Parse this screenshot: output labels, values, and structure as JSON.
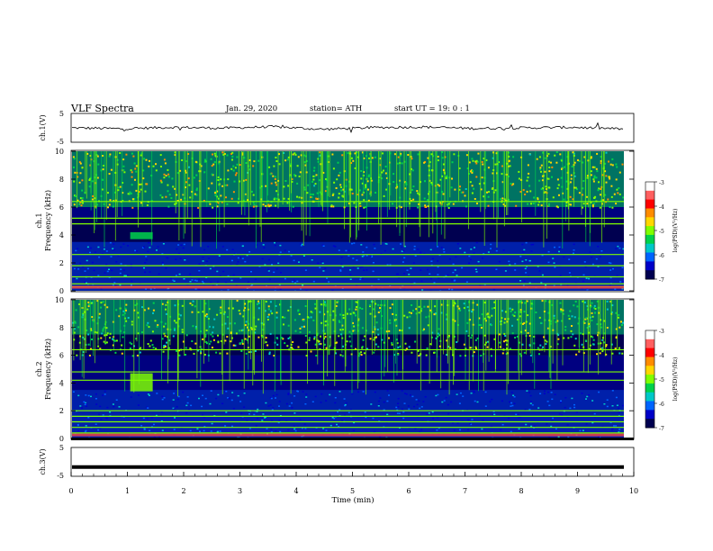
{
  "header": {
    "title": "VLF  Spectra",
    "date": "Jan. 29, 2020",
    "station": "station= ATH",
    "start": "start  UT  =    19: 0   : 1"
  },
  "colorbar": {
    "label": "log(PSD)(V²/Hz)",
    "ticks": [
      "-3",
      "-4",
      "-5",
      "-6",
      "-7"
    ],
    "colors": [
      "#ffffff",
      "#ff6060",
      "#ff0000",
      "#ff8c00",
      "#ffd700",
      "#7fff00",
      "#00d24b",
      "#00c8c8",
      "#0064ff",
      "#0000c8",
      "#000050"
    ]
  },
  "chart_data": [
    {
      "type": "line",
      "panel": "ch1-time-series",
      "ylabel": "ch.1(V)",
      "ylim": [
        -5,
        5
      ],
      "y_ticks": [
        "5",
        "-5"
      ],
      "series": [
        {
          "values_approx": [
            0.0,
            -0.3,
            0.2,
            -0.1,
            0.4,
            -0.5,
            0.1,
            0.3,
            -0.2,
            0.0,
            0.2,
            -0.4
          ]
        }
      ],
      "color": "#000000"
    },
    {
      "type": "heatmap",
      "panel": "ch1-spectrogram",
      "ylabel": "ch.1\nFrequency (kHz)",
      "xlim": [
        0,
        10
      ],
      "ylim": [
        0,
        10
      ],
      "y_ticks": [
        "10",
        "8",
        "6",
        "4",
        "2",
        "0"
      ],
      "value_range_log_psd": [
        -7,
        -3
      ],
      "features": {
        "sferic_band_khz": [
          6,
          10
        ],
        "sferic_level": -5.2,
        "quiet_band_khz": [
          3.5,
          5.2
        ],
        "quiet_level": -6.9,
        "narrowband_lines_khz": [
          6.4,
          5.2,
          4.8,
          2.6,
          1.8,
          1.0,
          0.5,
          0.3
        ],
        "emission_burst": {
          "time_min": [
            1.05,
            1.45
          ],
          "freq_khz": [
            3.7,
            4.2
          ],
          "level": -5.3
        }
      }
    },
    {
      "type": "heatmap",
      "panel": "ch2-spectrogram",
      "ylabel": "ch.2\nFrequency (kHz)",
      "xlim": [
        0,
        10
      ],
      "ylim": [
        0,
        10
      ],
      "y_ticks": [
        "10",
        "8",
        "6",
        "4",
        "2",
        "0"
      ],
      "value_range_log_psd": [
        -7,
        -3
      ],
      "features": {
        "sferic_band_khz": [
          6,
          10
        ],
        "sferic_level": -5.4,
        "quiet_band_khz": [
          6.0,
          7.5
        ],
        "quiet_level": -6.9,
        "narrowband_lines_khz": [
          6.4,
          4.8,
          4.2,
          2.0,
          1.6,
          1.2,
          0.8,
          0.4
        ],
        "emission_burst": {
          "time_min": [
            1.05,
            1.45
          ],
          "freq_khz": [
            3.4,
            4.7
          ],
          "level": -5.0
        }
      }
    },
    {
      "type": "line",
      "panel": "ch3-time-series",
      "ylabel": "ch.3(V)",
      "ylim": [
        -5,
        5
      ],
      "y_ticks": [
        "5",
        "-5"
      ],
      "series": [
        {
          "values_approx": [
            -1.8,
            -1.8,
            -1.8,
            -1.8
          ]
        }
      ],
      "color": "#000000",
      "xlabel": "Time  (min)",
      "x_ticks": [
        "0",
        "1",
        "2",
        "3",
        "4",
        "5",
        "6",
        "7",
        "8",
        "9",
        "10"
      ],
      "xlim": [
        0,
        10
      ]
    }
  ]
}
